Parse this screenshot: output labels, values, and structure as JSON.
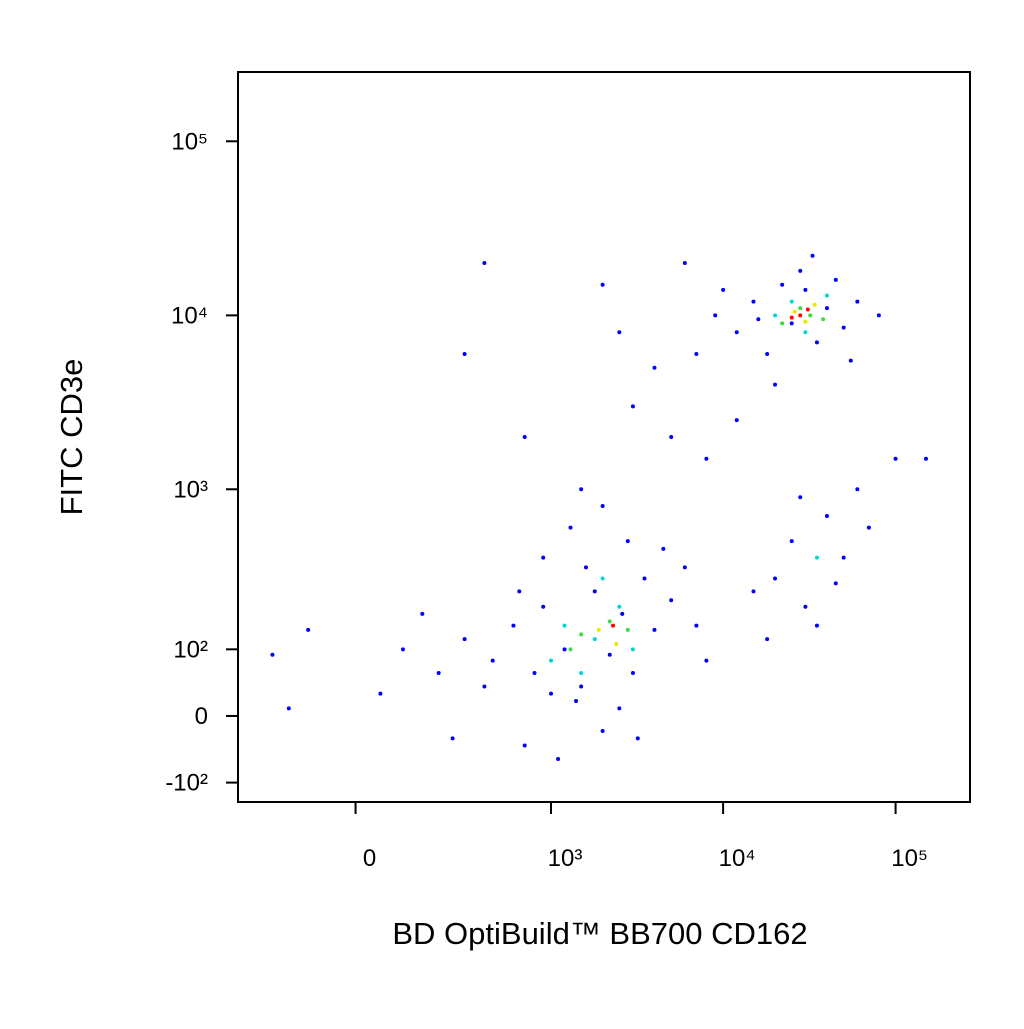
{
  "chart_data": {
    "type": "scatter",
    "xlabel": "BD OptiBuild™ BB700 CD162",
    "ylabel": "FITC CD3e",
    "scale": "biexponential",
    "xlim": [
      -340,
      270000
    ],
    "ylim": [
      -140,
      250000
    ],
    "xticks": [
      0,
      {
        "value": 1000,
        "label": "10³"
      },
      {
        "value": 10000,
        "label": "10⁴"
      },
      {
        "value": 100000,
        "label": "10⁵"
      }
    ],
    "yticks": [
      {
        "value": -100,
        "label": "-10²"
      },
      0,
      {
        "value": 100,
        "label": "10²"
      },
      {
        "value": 1000,
        "label": "10³"
      },
      {
        "value": 10000,
        "label": "10⁴"
      },
      {
        "value": 100000,
        "label": "10⁵"
      }
    ],
    "series": [
      {
        "color": "#0000ff",
        "x": [
          300,
          450,
          600,
          800,
          900,
          1200,
          1500,
          1800,
          2200,
          2600,
          3000,
          3500,
          4000,
          5000,
          200,
          150,
          100,
          -100,
          -200,
          50,
          700,
          1100,
          1400,
          2000,
          2500,
          3200,
          900,
          1300,
          2000,
          2800,
          4500,
          6000,
          7000,
          8000,
          1600,
          1000,
          650,
          400,
          250,
          -150,
          20000,
          25000,
          30000,
          40000,
          50000,
          35000,
          18000,
          60000,
          15000,
          45000,
          28000,
          70000,
          12000,
          15000,
          18000,
          22000,
          25000,
          30000,
          35000,
          40000,
          50000,
          60000,
          80000,
          20000,
          28000,
          45000,
          9000,
          7000,
          10000,
          55000,
          33000,
          16000,
          400,
          300,
          2000,
          3000,
          5000,
          1500,
          8000,
          6000,
          100000,
          150000,
          700,
          2500,
          4000,
          12000
        ],
        "values": [
          120,
          80,
          150,
          60,
          200,
          100,
          40,
          250,
          90,
          180,
          60,
          300,
          140,
          220,
          60,
          180,
          100,
          140,
          90,
          30,
          -40,
          -60,
          20,
          -20,
          10,
          -30,
          400,
          600,
          800,
          500,
          450,
          350,
          150,
          80,
          350,
          30,
          250,
          40,
          -30,
          10,
          300,
          500,
          200,
          700,
          400,
          150,
          120,
          1000,
          250,
          280,
          900,
          600,
          8000,
          12000,
          6000,
          15000,
          9000,
          14000,
          7000,
          11000,
          8500,
          12000,
          10000,
          4000,
          18000,
          16000,
          10000,
          6000,
          14000,
          5500,
          22000,
          9500,
          20000,
          6000,
          15000,
          3000,
          2000,
          1000,
          1500,
          20000,
          1500,
          1500,
          2000,
          8000,
          5000,
          2500
        ]
      },
      {
        "color": "#00d8d8",
        "x": [
          1200,
          1800,
          2500,
          3000,
          1000,
          2000,
          25000,
          30000,
          20000,
          40000,
          35000,
          1500
        ],
        "values": [
          150,
          120,
          200,
          100,
          80,
          300,
          12000,
          8000,
          10000,
          13000,
          400,
          60
        ]
      },
      {
        "color": "#3cdc3c",
        "x": [
          1500,
          2200,
          2800,
          1300,
          22000,
          28000,
          32000,
          38000
        ],
        "values": [
          130,
          160,
          140,
          100,
          9000,
          11000,
          10000,
          9500
        ]
      },
      {
        "color": "#e8e800",
        "x": [
          1900,
          2400,
          26000,
          30000,
          34000
        ],
        "values": [
          140,
          110,
          10500,
          9200,
          11500
        ]
      },
      {
        "color": "#ff0000",
        "x": [
          2300,
          28000,
          31000,
          25000
        ],
        "values": [
          150,
          10000,
          10800,
          9700
        ]
      }
    ]
  }
}
